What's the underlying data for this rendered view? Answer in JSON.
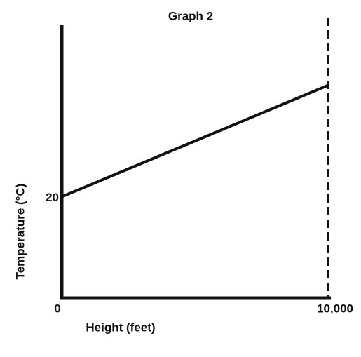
{
  "chart_data": {
    "type": "line",
    "title": "Graph 2",
    "x_label": "Height (feet)",
    "y_label": "Temperature (°C)",
    "x": [
      0,
      10000
    ],
    "series": [
      {
        "name": "Temperature",
        "color": "#111111",
        "values": [
          20,
          42
        ]
      }
    ],
    "xlim": [
      0,
      10000
    ],
    "xticks": [
      0,
      {
        "value": 10000,
        "label": "10,000"
      }
    ],
    "ylim": [
      0,
      54
    ],
    "yticks": [
      20
    ],
    "grid": false
  }
}
